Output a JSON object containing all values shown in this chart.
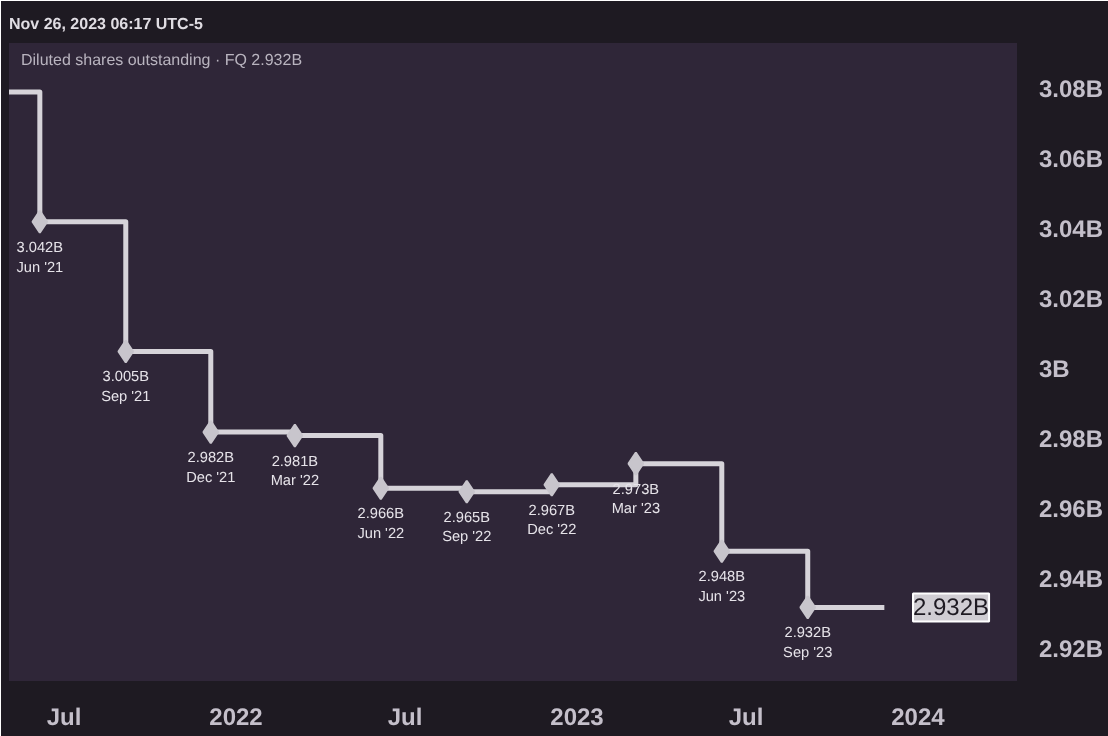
{
  "chart_data": {
    "type": "step",
    "title": "Diluted shares outstanding · FQ  2.932B",
    "annotations": [
      "Nov 26, 2023 06:17 UTC-5",
      {
        "text": "2.932B",
        "y": 2.932
      }
    ],
    "xlim": [
      "2021-05-03",
      "2024-04-16"
    ],
    "ylim": [
      2.911,
      3.093
    ],
    "xticks": [
      {
        "value": "2021-07-01",
        "label": "Jul"
      },
      {
        "value": "2022-01-01",
        "label": "2022"
      },
      {
        "value": "2022-07-01",
        "label": "Jul"
      },
      {
        "value": "2023-01-01",
        "label": "2023"
      },
      {
        "value": "2023-07-01",
        "label": "Jul"
      },
      {
        "value": "2024-01-01",
        "label": "2024"
      }
    ],
    "yticks": [
      {
        "value": 2.92,
        "label": "2.92B"
      },
      {
        "value": 2.94,
        "label": "2.94B"
      },
      {
        "value": 2.96,
        "label": "2.96B"
      },
      {
        "value": 2.98,
        "label": "2.98B"
      },
      {
        "value": 3.0,
        "label": "3B"
      },
      {
        "value": 3.02,
        "label": "3.02B"
      },
      {
        "value": 3.04,
        "label": "3.04B"
      },
      {
        "value": 3.06,
        "label": "3.06B"
      },
      {
        "value": 3.08,
        "label": "3.08B"
      }
    ],
    "grid": false,
    "series": [
      {
        "color": "#d6d3d9",
        "x": [
          "2021-05-03",
          "2021-06-05",
          "2021-09-05",
          "2021-12-05",
          "2022-03-05",
          "2022-06-05",
          "2022-09-05",
          "2022-12-05",
          "2023-03-05",
          "2023-06-05",
          "2023-09-05",
          "2023-11-26"
        ],
        "values": [
          3.079,
          3.042,
          3.005,
          2.982,
          2.981,
          2.966,
          2.965,
          2.967,
          2.973,
          2.948,
          2.932,
          2.932
        ]
      },
      {
        "type": "scatter",
        "color": "#c8c5cc",
        "marker": "diamond",
        "x": [
          "2021-06-05",
          "2021-09-05",
          "2021-12-05",
          "2022-03-05",
          "2022-06-05",
          "2022-09-05",
          "2022-12-05",
          "2023-03-05",
          "2023-06-05",
          "2023-09-05"
        ],
        "values": [
          3.042,
          3.005,
          2.982,
          2.981,
          2.966,
          2.965,
          2.967,
          2.973,
          2.948,
          2.932
        ],
        "value_labels": [
          "3.042B\nJun '21",
          "3.005B\nSep '21",
          "2.982B\nDec '21",
          "2.981B\nMar '22",
          "2.966B\nJun '22",
          "2.965B\nSep '22",
          "2.967B\nDec '22",
          "2.973B\nMar '23",
          "2.948B\nJun '23",
          "2.932B\nSep '23"
        ]
      }
    ]
  }
}
